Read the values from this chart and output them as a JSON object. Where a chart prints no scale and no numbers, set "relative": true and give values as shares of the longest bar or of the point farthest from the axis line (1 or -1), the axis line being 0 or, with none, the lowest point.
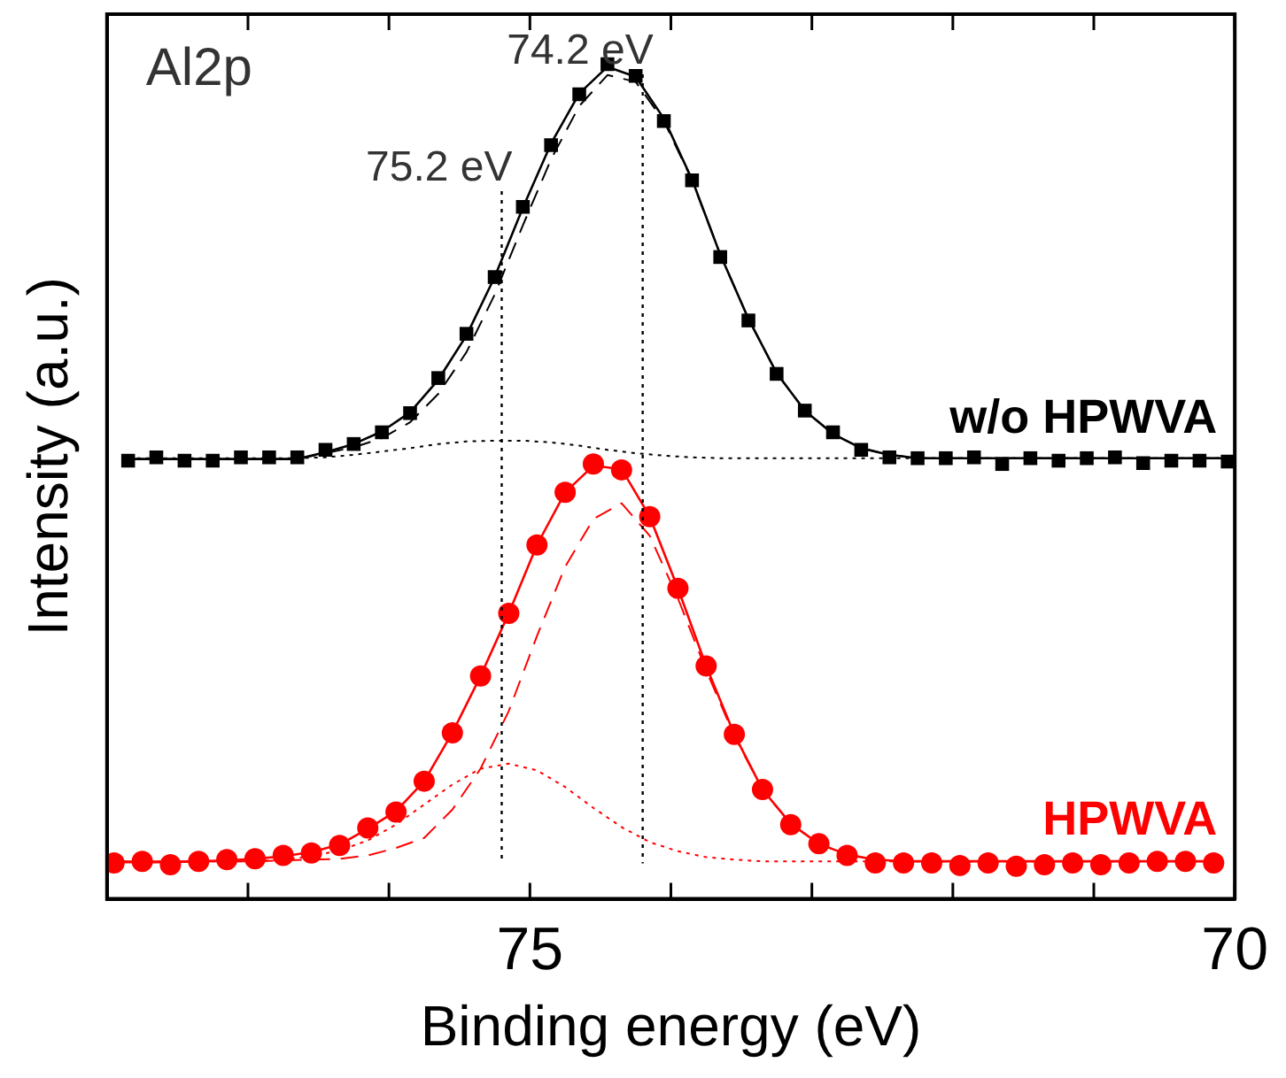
{
  "chart_data": {
    "type": "line",
    "xlabel": "Binding energy (eV)",
    "ylabel": "Intensity (a.u.)",
    "relative": true,
    "xlim": [
      78,
      70
    ],
    "xticks": [
      {
        "value": 78,
        "label": null
      },
      {
        "value": 77,
        "label": null
      },
      {
        "value": 76,
        "label": null
      },
      75,
      {
        "value": 74,
        "label": null
      },
      {
        "value": 73,
        "label": null
      },
      {
        "value": 72,
        "label": null
      },
      {
        "value": 71,
        "label": null
      },
      70
    ],
    "annotations": [
      "Al2p"
    ],
    "ref_lines": [
      {
        "axis": "x",
        "value": 75.2,
        "label": "75.2 eV",
        "color": "#000000",
        "line_style": "dotted"
      },
      {
        "axis": "x",
        "value": 74.2,
        "label": "74.2 eV",
        "color": "#000000",
        "line_style": "dotted"
      }
    ],
    "series": [
      {
        "color": "#000000",
        "marker": "none",
        "line_style": "dashed",
        "x": [
          77.85,
          77.65,
          77.45,
          77.25,
          77.05,
          76.85,
          76.65,
          76.45,
          76.25,
          76.05,
          75.85,
          75.65,
          75.45,
          75.25,
          75.05,
          74.85,
          74.65,
          74.45,
          74.25,
          74.05,
          73.85,
          73.65,
          73.45,
          73.25,
          73.05,
          72.85,
          72.65,
          72.45,
          72.25,
          72.05,
          71.85,
          71.65,
          71.45,
          71.25,
          71.05,
          70.85,
          70.65,
          70.45,
          70.25,
          70.05
        ],
        "values": [
          0.527,
          0.527,
          0.527,
          0.527,
          0.527,
          0.527,
          0.527,
          0.534,
          0.541,
          0.552,
          0.571,
          0.605,
          0.655,
          0.724,
          0.807,
          0.886,
          0.95,
          0.987,
          0.979,
          0.932,
          0.861,
          0.772,
          0.695,
          0.63,
          0.585,
          0.557,
          0.54,
          0.532,
          0.528,
          0.528,
          0.528,
          0.528,
          0.528,
          0.528,
          0.528,
          0.528,
          0.528,
          0.528,
          0.528,
          0.528
        ]
      },
      {
        "color": "#000000",
        "marker": "none",
        "line_style": "dotted",
        "x": [
          77.85,
          77.65,
          77.45,
          77.25,
          77.05,
          76.85,
          76.65,
          76.45,
          76.25,
          76.05,
          75.85,
          75.65,
          75.45,
          75.25,
          75.05,
          74.85,
          74.65,
          74.45,
          74.25,
          74.05,
          73.85,
          73.65,
          73.45,
          73.25,
          73.05,
          72.85,
          72.65,
          72.45,
          72.25,
          72.05,
          71.85,
          71.65,
          71.45,
          71.25,
          71.05,
          70.85,
          70.65,
          70.45,
          70.25,
          70.05
        ],
        "values": [
          0.528,
          0.528,
          0.528,
          0.528,
          0.528,
          0.528,
          0.528,
          0.529,
          0.532,
          0.536,
          0.54,
          0.545,
          0.548,
          0.549,
          0.549,
          0.547,
          0.543,
          0.538,
          0.534,
          0.531,
          0.529,
          0.528,
          0.528,
          0.528,
          0.528,
          0.528,
          0.528,
          0.528,
          0.528,
          0.528,
          0.528,
          0.528,
          0.528,
          0.528,
          0.528,
          0.528,
          0.528,
          0.528,
          0.528,
          0.528
        ]
      },
      {
        "color": "#000000",
        "marker": "none",
        "line_style": "solid",
        "x": [
          77.85,
          77.65,
          77.45,
          77.25,
          77.05,
          76.85,
          76.65,
          76.45,
          76.25,
          76.05,
          75.85,
          75.65,
          75.45,
          75.25,
          75.05,
          74.85,
          74.65,
          74.45,
          74.25,
          74.05,
          73.85,
          73.65,
          73.45,
          73.25,
          73.05,
          72.85,
          72.65,
          72.45,
          72.25,
          72.05,
          71.85,
          71.65,
          71.45,
          71.25,
          71.05,
          70.85,
          70.65,
          70.45,
          70.25,
          70.05
        ],
        "values": [
          0.527,
          0.527,
          0.527,
          0.527,
          0.527,
          0.527,
          0.527,
          0.535,
          0.545,
          0.56,
          0.583,
          0.622,
          0.675,
          0.745,
          0.828,
          0.905,
          0.965,
          0.997,
          0.985,
          0.935,
          0.862,
          0.772,
          0.695,
          0.63,
          0.585,
          0.557,
          0.54,
          0.532,
          0.528,
          0.528,
          0.528,
          0.528,
          0.528,
          0.528,
          0.528,
          0.528,
          0.528,
          0.528,
          0.528,
          0.528
        ]
      },
      {
        "name": "w/o HPWVA",
        "type": "scatter",
        "color": "#000000",
        "marker": "square",
        "x": [
          77.85,
          77.65,
          77.45,
          77.25,
          77.05,
          76.85,
          76.65,
          76.45,
          76.25,
          76.05,
          75.85,
          75.65,
          75.45,
          75.25,
          75.05,
          74.85,
          74.65,
          74.45,
          74.25,
          74.05,
          73.85,
          73.65,
          73.45,
          73.25,
          73.05,
          72.85,
          72.65,
          72.45,
          72.25,
          72.05,
          71.85,
          71.65,
          71.45,
          71.25,
          71.05,
          70.85,
          70.65,
          70.45,
          70.25,
          70.05
        ],
        "values": [
          0.525,
          0.529,
          0.525,
          0.525,
          0.529,
          0.529,
          0.529,
          0.538,
          0.545,
          0.559,
          0.582,
          0.624,
          0.677,
          0.745,
          0.829,
          0.903,
          0.964,
          1,
          0.986,
          0.932,
          0.861,
          0.769,
          0.693,
          0.629,
          0.585,
          0.559,
          0.538,
          0.529,
          0.528,
          0.528,
          0.529,
          0.521,
          0.528,
          0.525,
          0.528,
          0.529,
          0.522,
          0.525,
          0.525,
          0.524
        ]
      },
      {
        "color": "#ff0000",
        "marker": "none",
        "line_style": "dashed",
        "x": [
          77.95,
          77.75,
          77.55,
          77.35,
          77.15,
          76.95,
          76.75,
          76.55,
          76.35,
          76.15,
          75.95,
          75.75,
          75.55,
          75.35,
          75.15,
          74.95,
          74.75,
          74.55,
          74.35,
          74.15,
          73.95,
          73.75,
          73.55,
          73.35,
          73.15,
          72.95,
          72.75,
          72.55,
          72.35,
          72.15,
          71.95,
          71.75,
          71.55,
          71.35,
          71.15,
          70.95,
          70.75,
          70.55,
          70.35,
          70.15
        ],
        "values": [
          0.045,
          0.045,
          0.045,
          0.045,
          0.045,
          0.045,
          0.046,
          0.047,
          0.048,
          0.052,
          0.061,
          0.073,
          0.107,
          0.156,
          0.225,
          0.315,
          0.398,
          0.455,
          0.474,
          0.435,
          0.36,
          0.274,
          0.195,
          0.131,
          0.09,
          0.066,
          0.053,
          0.047,
          0.045,
          0.045,
          0.045,
          0.045,
          0.045,
          0.045,
          0.045,
          0.045,
          0.045,
          0.045,
          0.045,
          0.045
        ]
      },
      {
        "color": "#ff0000",
        "marker": "none",
        "line_style": "dotted",
        "x": [
          77.95,
          77.75,
          77.55,
          77.35,
          77.15,
          76.95,
          76.75,
          76.55,
          76.35,
          76.15,
          75.95,
          75.75,
          75.55,
          75.35,
          75.15,
          74.95,
          74.75,
          74.55,
          74.35,
          74.15,
          73.95,
          73.75,
          73.55,
          73.35,
          73.15,
          72.95,
          72.75,
          72.55,
          72.35,
          72.15,
          71.95,
          71.75,
          71.55,
          71.35,
          71.15,
          70.95,
          70.75,
          70.55,
          70.35,
          70.15
        ],
        "values": [
          0.045,
          0.045,
          0.045,
          0.045,
          0.045,
          0.045,
          0.047,
          0.051,
          0.058,
          0.07,
          0.089,
          0.113,
          0.137,
          0.156,
          0.162,
          0.154,
          0.134,
          0.109,
          0.086,
          0.068,
          0.057,
          0.05,
          0.047,
          0.045,
          0.045,
          0.045,
          0.045,
          0.045,
          0.045,
          0.045,
          0.045,
          0.045,
          0.045,
          0.045,
          0.045,
          0.045,
          0.045,
          0.045,
          0.045,
          0.045
        ]
      },
      {
        "color": "#ff0000",
        "marker": "none",
        "line_style": "solid",
        "x": [
          77.95,
          77.75,
          77.55,
          77.35,
          77.15,
          76.95,
          76.75,
          76.55,
          76.35,
          76.15,
          75.95,
          75.75,
          75.55,
          75.35,
          75.15,
          74.95,
          74.75,
          74.55,
          74.35,
          74.15,
          73.95,
          73.75,
          73.55,
          73.35,
          73.15,
          72.95,
          72.75,
          72.55,
          72.35,
          72.15,
          71.95,
          71.75,
          71.55,
          71.35,
          71.15,
          70.95,
          70.75,
          70.55,
          70.35,
          70.15
        ],
        "values": [
          0.044,
          0.044,
          0.044,
          0.045,
          0.046,
          0.048,
          0.051,
          0.056,
          0.065,
          0.084,
          0.105,
          0.141,
          0.199,
          0.267,
          0.342,
          0.424,
          0.487,
          0.519,
          0.515,
          0.458,
          0.372,
          0.279,
          0.197,
          0.131,
          0.09,
          0.066,
          0.053,
          0.047,
          0.045,
          0.045,
          0.045,
          0.045,
          0.045,
          0.045,
          0.045,
          0.045,
          0.045,
          0.045,
          0.045,
          0.045
        ]
      },
      {
        "name": "HPWVA",
        "type": "scatter",
        "color": "#ff0000",
        "marker": "circle",
        "x": [
          77.95,
          77.75,
          77.55,
          77.35,
          77.15,
          76.95,
          76.75,
          76.55,
          76.35,
          76.15,
          75.95,
          75.75,
          75.55,
          75.35,
          75.15,
          74.95,
          74.75,
          74.55,
          74.35,
          74.15,
          73.95,
          73.75,
          73.55,
          73.35,
          73.15,
          72.95,
          72.75,
          72.55,
          72.35,
          72.15,
          71.95,
          71.75,
          71.55,
          71.35,
          71.15,
          70.95,
          70.75,
          70.55,
          70.35,
          70.15
        ],
        "values": [
          0.043,
          0.045,
          0.041,
          0.045,
          0.047,
          0.048,
          0.052,
          0.055,
          0.064,
          0.085,
          0.104,
          0.141,
          0.199,
          0.267,
          0.342,
          0.424,
          0.487,
          0.521,
          0.514,
          0.458,
          0.372,
          0.279,
          0.197,
          0.131,
          0.089,
          0.066,
          0.052,
          0.043,
          0.043,
          0.043,
          0.04,
          0.043,
          0.039,
          0.041,
          0.043,
          0.041,
          0.043,
          0.045,
          0.045,
          0.043
        ]
      }
    ]
  }
}
